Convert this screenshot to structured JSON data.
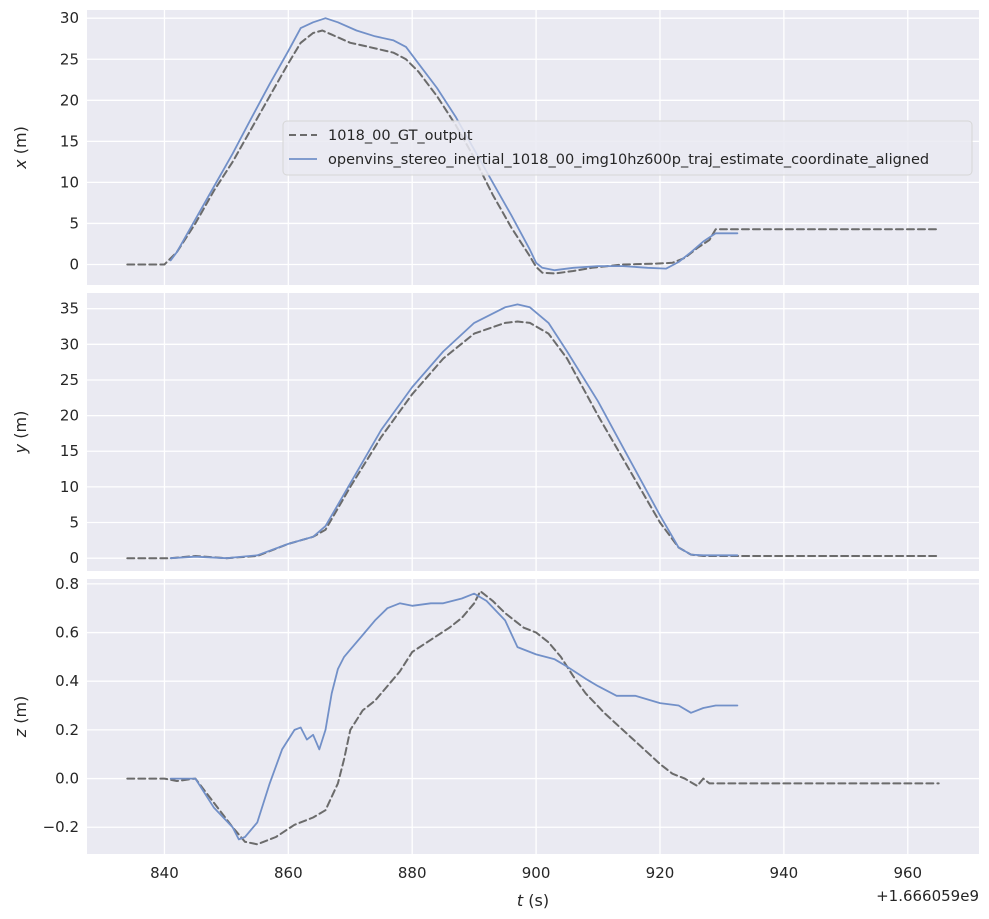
{
  "chart_data": {
    "type": "line",
    "shared_xlim": [
      827.5,
      971.5
    ],
    "xticks": [
      840,
      860,
      880,
      900,
      920,
      940,
      960
    ],
    "xlabel": "t (s)",
    "x_offset_label": "+1.666059e9",
    "grid": true,
    "legend": {
      "placement": "upper-center of top panel",
      "entries": [
        "1018_00_GT_output",
        "openvins_stereo_inertial_1018_00_img10hz600p_traj_estimate_coordinate_aligned"
      ]
    },
    "series_colors": {
      "gt": "#6b6b6b",
      "est": "#7290c8"
    },
    "panels": [
      {
        "ylabel": "x (m)",
        "ylim": [
          -2.5,
          31
        ],
        "yticks": [
          0,
          5,
          10,
          15,
          20,
          25,
          30
        ],
        "ytick_labels": [
          "0",
          "5",
          "10",
          "15",
          "20",
          "25",
          "30"
        ],
        "series": [
          {
            "name": "1018_00_GT_output",
            "x": [
              834,
              840,
              842,
              845,
              848,
              851,
              854,
              857,
              860,
              862,
              864,
              865.5,
              867,
              870,
              873,
              877,
              879,
              881,
              884,
              887,
              890,
              893,
              896,
              899,
              900,
              901,
              903,
              906,
              909,
              914,
              919,
              922,
              924,
              926,
              928,
              929,
              940,
              950,
              965
            ],
            "y": [
              0,
              0,
              1.5,
              5,
              9,
              12.5,
              16.5,
              20.5,
              24.5,
              27,
              28.2,
              28.5,
              28,
              27,
              26.5,
              25.8,
              25,
              23.5,
              20.5,
              17,
              13,
              8.5,
              4.5,
              1,
              -0.3,
              -1,
              -1.1,
              -0.8,
              -0.4,
              0,
              0.1,
              0.2,
              0.8,
              2,
              3,
              4.3,
              4.3,
              4.3,
              4.3
            ]
          },
          {
            "name": "openvins_stereo_inertial_1018_00_img10hz600p_traj_estimate_coordinate_aligned",
            "x": [
              841,
              842,
              845,
              848,
              851,
              854,
              857,
              860,
              862,
              864,
              866,
              868,
              871,
              874,
              877,
              879,
              881,
              884,
              887,
              890,
              893,
              896,
              899,
              900,
              901,
              903,
              906,
              910,
              914,
              918,
              921,
              923,
              925,
              927,
              929,
              932.5
            ],
            "y": [
              0.5,
              1.5,
              5.5,
              9.5,
              13.5,
              17.8,
              22,
              26,
              28.8,
              29.5,
              30,
              29.5,
              28.5,
              27.8,
              27.3,
              26.5,
              24.5,
              21.5,
              18,
              14,
              10,
              6,
              1.8,
              0.2,
              -0.4,
              -0.7,
              -0.4,
              -0.2,
              -0.2,
              -0.4,
              -0.5,
              0.3,
              1.5,
              2.8,
              3.8,
              3.8
            ]
          }
        ]
      },
      {
        "ylabel": "y (m)",
        "ylim": [
          -1.8,
          37.2
        ],
        "yticks": [
          0,
          5,
          10,
          15,
          20,
          25,
          30,
          35
        ],
        "ytick_labels": [
          "0",
          "5",
          "10",
          "15",
          "20",
          "25",
          "30",
          "35"
        ],
        "series": [
          {
            "name": "1018_00_GT_output",
            "x": [
              834,
              841,
              845,
              850,
              855,
              860,
              864,
              866,
              870,
              875,
              880,
              885,
              890,
              895,
              897,
              899,
              902,
              905,
              910,
              915,
              920,
              923,
              925,
              927,
              930,
              940,
              950,
              965
            ],
            "y": [
              0,
              0,
              0.3,
              0,
              0.3,
              2,
              3,
              4,
              10,
              17,
              23,
              28,
              31.5,
              33,
              33.2,
              33,
              31.5,
              28,
              20,
              12.5,
              5,
              1.5,
              0.5,
              0.3,
              0.3,
              0.3,
              0.3,
              0.3
            ]
          },
          {
            "name": "openvins_stereo_inertial_1018_00_img10hz600p_traj_estimate_coordinate_aligned",
            "x": [
              841,
              845,
              850,
              855,
              860,
              864,
              866,
              870,
              875,
              880,
              885,
              890,
              895,
              897,
              899,
              902,
              905,
              910,
              915,
              920,
              923,
              925,
              927,
              932.5
            ],
            "y": [
              0,
              0.2,
              0,
              0.4,
              2,
              3,
              4.5,
              10.5,
              18,
              24,
              29,
              33,
              35.2,
              35.6,
              35.2,
              33,
              29,
              22,
              14,
              6,
              1.5,
              0.5,
              0.4,
              0.4
            ]
          }
        ]
      },
      {
        "ylabel": "z (m)",
        "ylim": [
          -0.31,
          0.82
        ],
        "yticks": [
          -0.2,
          0.0,
          0.2,
          0.4,
          0.6,
          0.8
        ],
        "ytick_labels": [
          "−0.2",
          "0.0",
          "0.2",
          "0.4",
          "0.6",
          "0.8"
        ],
        "series": [
          {
            "name": "1018_00_GT_output",
            "x": [
              834,
              840,
              842,
              845,
              848,
              851,
              853,
              855,
              858,
              861,
              864,
              866,
              868,
              869,
              870,
              872,
              874,
              876,
              878,
              880,
              883,
              886,
              888,
              890,
              891,
              893,
              895,
              897,
              898,
              900,
              902,
              904,
              906,
              908,
              911,
              914,
              917,
              920,
              922,
              924,
              926,
              927,
              928,
              929,
              935,
              945,
              965
            ],
            "y": [
              0,
              0,
              -0.01,
              0,
              -0.1,
              -0.2,
              -0.26,
              -0.27,
              -0.24,
              -0.19,
              -0.16,
              -0.13,
              -0.02,
              0.08,
              0.2,
              0.28,
              0.32,
              0.38,
              0.44,
              0.52,
              0.57,
              0.62,
              0.66,
              0.72,
              0.77,
              0.73,
              0.68,
              0.64,
              0.62,
              0.6,
              0.56,
              0.5,
              0.42,
              0.35,
              0.27,
              0.2,
              0.13,
              0.06,
              0.02,
              0,
              -0.03,
              0,
              -0.02,
              -0.02,
              -0.02,
              -0.02,
              -0.02
            ]
          },
          {
            "name": "openvins_stereo_inertial_1018_00_img10hz600p_traj_estimate_coordinate_aligned",
            "x": [
              841,
              843,
              845,
              848,
              851,
              852,
              853,
              855,
              857,
              859,
              861,
              862,
              863,
              864,
              865,
              866,
              867,
              868,
              869,
              870,
              872,
              874,
              876,
              878,
              880,
              883,
              885,
              888,
              890,
              892,
              895,
              897,
              900,
              903,
              905,
              908,
              910,
              913,
              916,
              920,
              923,
              925,
              927,
              929,
              932.5
            ],
            "y": [
              0,
              0,
              0,
              -0.12,
              -0.2,
              -0.25,
              -0.24,
              -0.18,
              -0.02,
              0.12,
              0.2,
              0.21,
              0.16,
              0.18,
              0.12,
              0.2,
              0.35,
              0.45,
              0.5,
              0.53,
              0.59,
              0.65,
              0.7,
              0.72,
              0.71,
              0.72,
              0.72,
              0.74,
              0.76,
              0.73,
              0.65,
              0.54,
              0.51,
              0.49,
              0.46,
              0.41,
              0.38,
              0.34,
              0.34,
              0.31,
              0.3,
              0.27,
              0.29,
              0.3,
              0.3
            ]
          }
        ]
      }
    ]
  }
}
